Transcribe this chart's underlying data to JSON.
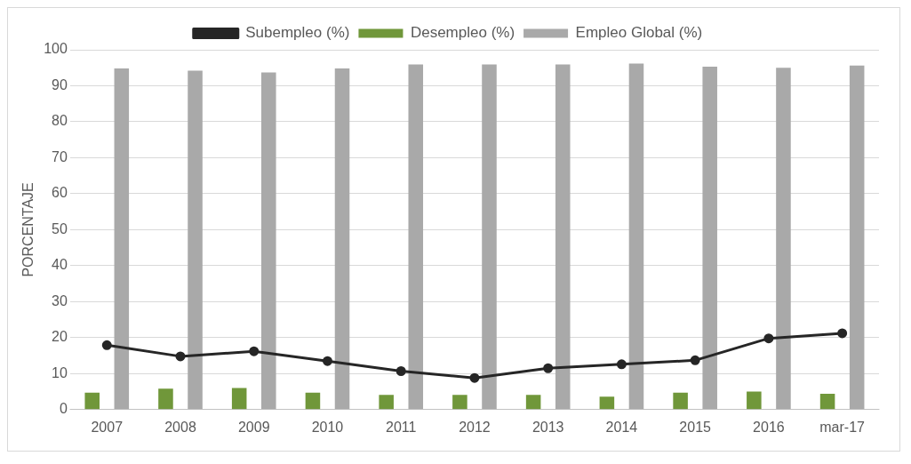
{
  "chart_data": {
    "type": "bar",
    "ylabel": "PORCENTAJE",
    "categories": [
      "2007",
      "2008",
      "2009",
      "2010",
      "2011",
      "2012",
      "2013",
      "2014",
      "2015",
      "2016",
      "mar-17"
    ],
    "series": [
      {
        "name": "Desempleo (%)",
        "color": "#70973a",
        "values": [
          4.7,
          5.8,
          6.0,
          4.7,
          4.1,
          4.1,
          4.1,
          3.6,
          4.7,
          5.0,
          4.4
        ]
      },
      {
        "name": "Empleo Global (%)",
        "color": "#a9a9a9",
        "values": [
          94.8,
          94.2,
          93.7,
          94.8,
          95.9,
          95.9,
          95.9,
          96.2,
          95.3,
          95.0,
          95.6
        ]
      },
      {
        "name": "Subempleo (%)",
        "type": "line",
        "color": "#262626",
        "values": [
          17.9,
          14.8,
          16.2,
          13.5,
          10.7,
          8.8,
          11.5,
          12.6,
          13.7,
          19.8,
          21.2
        ]
      }
    ],
    "ylim": [
      0,
      100
    ],
    "yticks": [
      0,
      10,
      20,
      30,
      40,
      50,
      60,
      70,
      80,
      90,
      100
    ],
    "grid": "y",
    "legend": "top",
    "marker": "circle"
  }
}
